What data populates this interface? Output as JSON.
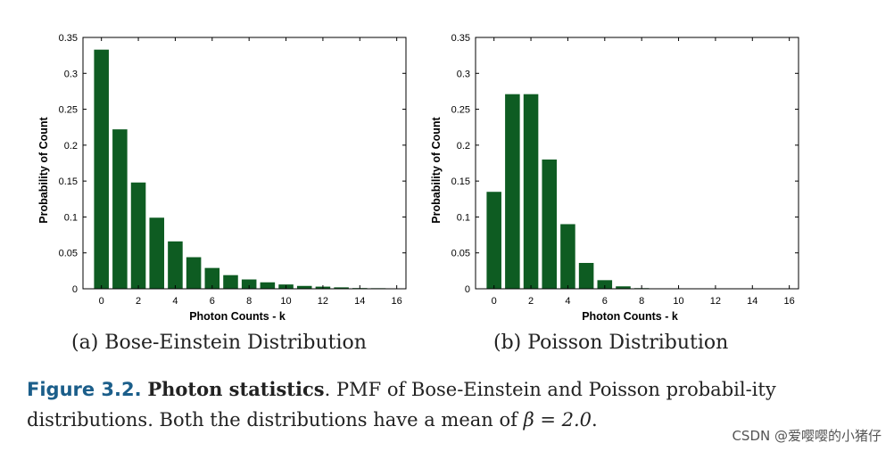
{
  "chart_data": [
    {
      "type": "bar",
      "title": "",
      "xlabel": "Photon Counts - k",
      "ylabel": "Probability of Count",
      "xlim": [
        -1,
        16.5
      ],
      "ylim": [
        0,
        0.35
      ],
      "xticks": [
        "0",
        "2",
        "4",
        "6",
        "8",
        "10",
        "12",
        "14",
        "16"
      ],
      "yticks": [
        "0",
        "0.05",
        "0.1",
        "0.15",
        "0.2",
        "0.25",
        "0.3",
        "0.35"
      ],
      "bar_color": "#0e5c22",
      "x": [
        0,
        1,
        2,
        3,
        4,
        5,
        6,
        7,
        8,
        9,
        10,
        11,
        12,
        13,
        14,
        15,
        16
      ],
      "values": [
        0.333,
        0.222,
        0.148,
        0.099,
        0.066,
        0.044,
        0.029,
        0.019,
        0.013,
        0.009,
        0.006,
        0.004,
        0.003,
        0.002,
        0.001,
        0.0008,
        0.0005
      ],
      "caption": "(a) Bose-Einstein Distribution"
    },
    {
      "type": "bar",
      "title": "",
      "xlabel": "Photon Counts - k",
      "ylabel": "Probability of Count",
      "xlim": [
        -1,
        16.5
      ],
      "ylim": [
        0,
        0.35
      ],
      "xticks": [
        "0",
        "2",
        "4",
        "6",
        "8",
        "10",
        "12",
        "14",
        "16"
      ],
      "yticks": [
        "0",
        "0.05",
        "0.1",
        "0.15",
        "0.2",
        "0.25",
        "0.3",
        "0.35"
      ],
      "bar_color": "#0e5c22",
      "x": [
        0,
        1,
        2,
        3,
        4,
        5,
        6,
        7,
        8,
        9,
        10,
        11,
        12,
        13,
        14,
        15,
        16
      ],
      "values": [
        0.135,
        0.271,
        0.271,
        0.18,
        0.09,
        0.036,
        0.012,
        0.0034,
        0.0009,
        0.0002,
        0,
        0,
        0,
        0,
        0,
        0,
        0
      ],
      "caption": "(b) Poisson Distribution"
    }
  ],
  "figure_caption": {
    "label": "Figure 3.2.",
    "title": "Photon statistics",
    "text_before_math": ". PMF of Bose-Einstein and Poisson probabil-ity distributions. Both the distributions have a mean of ",
    "math": "β = 2.0",
    "text_after_math": "."
  },
  "watermark": "CSDN @爱嘤嘤的小猪仔"
}
